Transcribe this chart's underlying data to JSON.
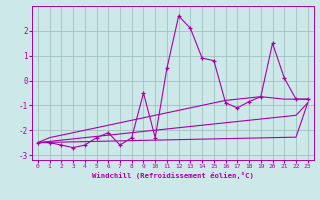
{
  "xlabel": "Windchill (Refroidissement éolien,°C)",
  "x_values": [
    0,
    1,
    2,
    3,
    4,
    5,
    6,
    7,
    8,
    9,
    10,
    11,
    12,
    13,
    14,
    15,
    16,
    17,
    18,
    19,
    20,
    21,
    22,
    23
  ],
  "y_main": [
    -2.5,
    -2.5,
    -2.6,
    -2.7,
    -2.6,
    -2.3,
    -2.1,
    -2.6,
    -2.3,
    -0.5,
    -2.3,
    0.5,
    2.6,
    2.1,
    0.9,
    0.8,
    -0.9,
    -1.1,
    -0.85,
    -0.65,
    1.5,
    0.1,
    -0.75,
    -0.75
  ],
  "y_line1": [
    -2.5,
    -2.3,
    -2.2,
    -2.1,
    -2.0,
    -1.9,
    -1.8,
    -1.7,
    -1.6,
    -1.5,
    -1.4,
    -1.3,
    -1.2,
    -1.1,
    -1.0,
    -0.9,
    -0.8,
    -0.75,
    -0.7,
    -0.65,
    -0.7,
    -0.75,
    -0.75,
    -0.75
  ],
  "y_line2": [
    -2.5,
    -2.45,
    -2.4,
    -2.35,
    -2.3,
    -2.25,
    -2.2,
    -2.15,
    -2.1,
    -2.05,
    -2.0,
    -1.95,
    -1.9,
    -1.85,
    -1.8,
    -1.75,
    -1.7,
    -1.65,
    -1.6,
    -1.55,
    -1.5,
    -1.45,
    -1.4,
    -0.9
  ],
  "y_line3": [
    -2.5,
    -2.49,
    -2.48,
    -2.47,
    -2.46,
    -2.45,
    -2.44,
    -2.43,
    -2.42,
    -2.41,
    -2.4,
    -2.39,
    -2.38,
    -2.37,
    -2.36,
    -2.35,
    -2.34,
    -2.33,
    -2.32,
    -2.31,
    -2.3,
    -2.29,
    -2.28,
    -0.9
  ],
  "ylim": [
    -3.2,
    3.0
  ],
  "yticks": [
    -3,
    -2,
    -1,
    0,
    1,
    2
  ],
  "xticks": [
    0,
    1,
    2,
    3,
    4,
    5,
    6,
    7,
    8,
    9,
    10,
    11,
    12,
    13,
    14,
    15,
    16,
    17,
    18,
    19,
    20,
    21,
    22,
    23
  ],
  "line_color": "#aa00aa",
  "bg_color": "#cce8e8",
  "grid_color": "#99bbbb"
}
